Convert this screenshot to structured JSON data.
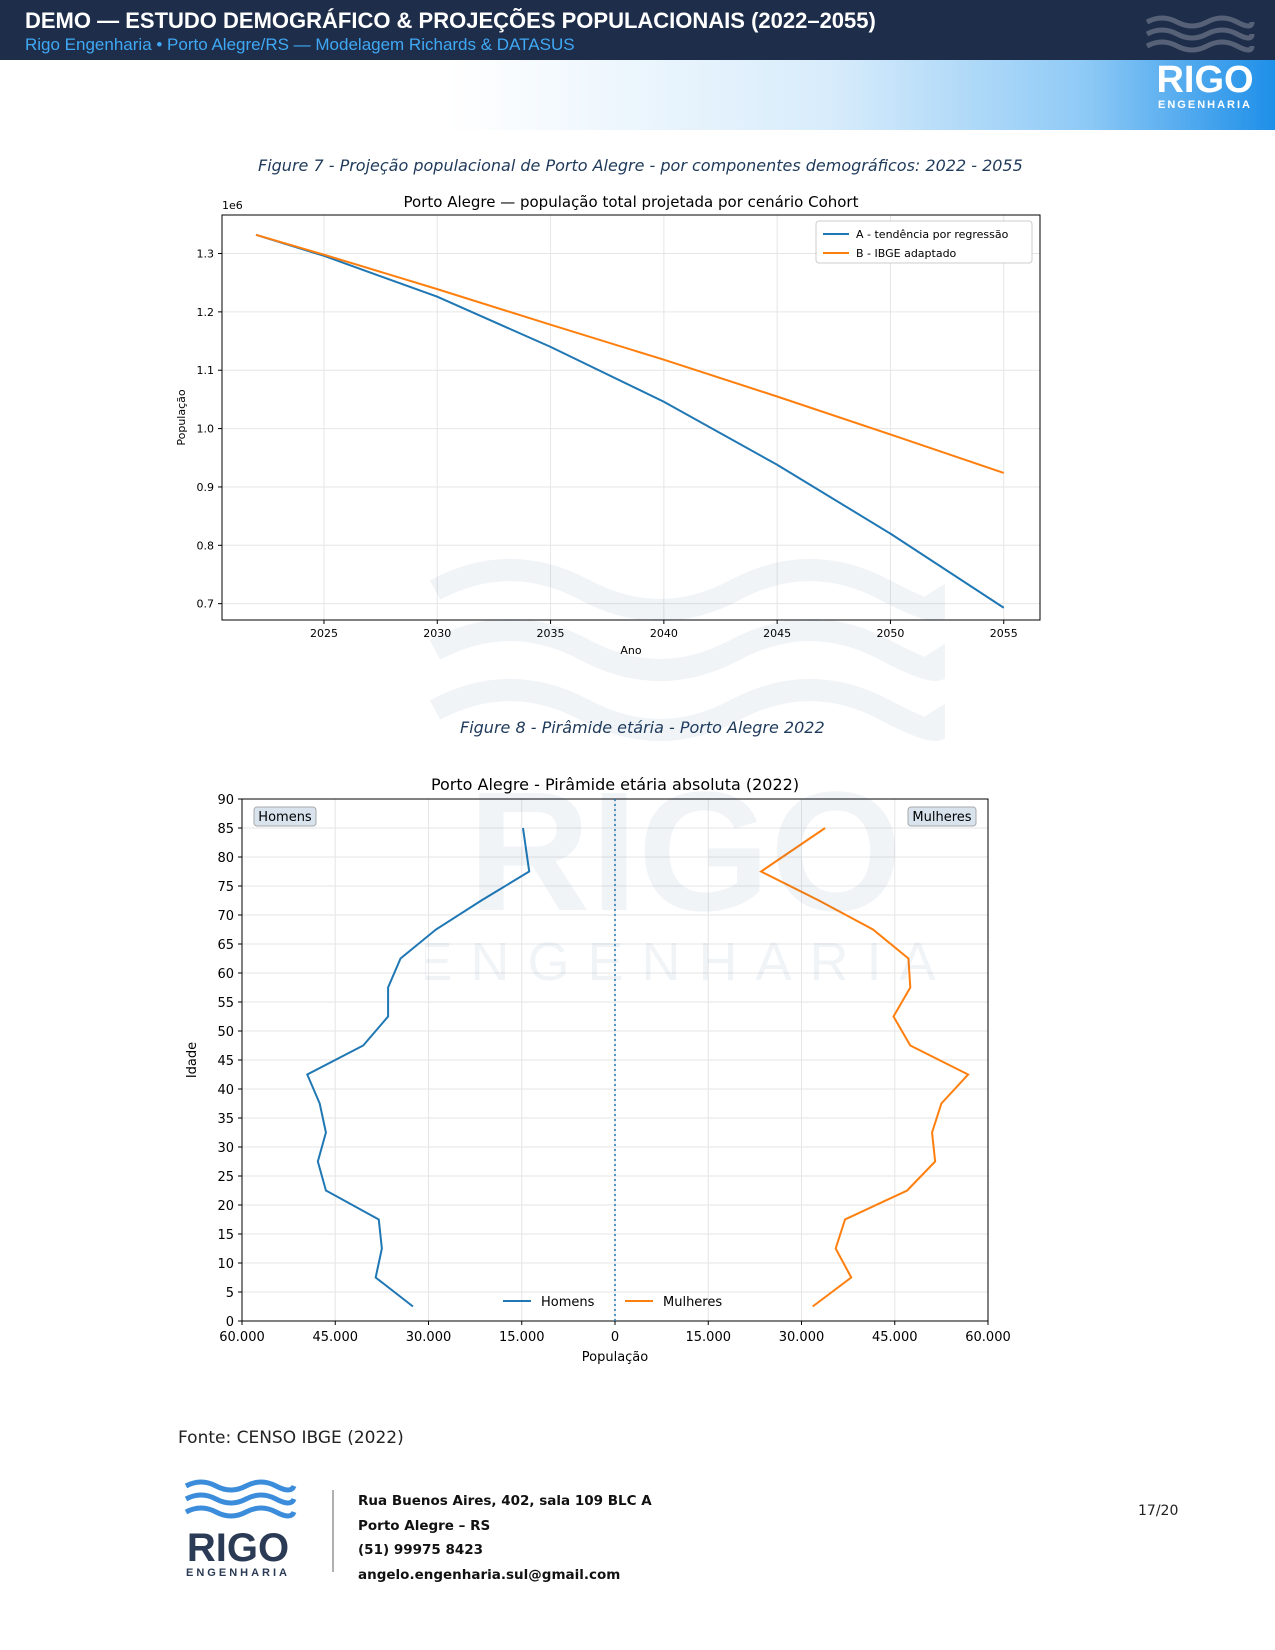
{
  "header": {
    "title": "DEMO — ESTUDO DEMOGRÁFICO & PROJEÇÕES POPULACIONAIS (2022–2055)",
    "subtitle": "Rigo Engenharia • Porto Alegre/RS — Modelagem Richards & DATASUS"
  },
  "logo": {
    "name": "RIGO",
    "tagline": "ENGENHARIA",
    "icon": "waves-icon"
  },
  "captions": {
    "figure7": "Figure 7 - Projeção populacional de Porto Alegre - por componentes demográficos: 2022 - 2055",
    "figure8": "Figure 8 - Pirâmide etária - Porto Alegre 2022"
  },
  "chart_data": [
    {
      "type": "line",
      "title": "Porto Alegre — população total projetada por cenário Cohort",
      "xlabel": "Ano",
      "ylabel": "População",
      "y_multiplier": "1e6",
      "xlim": [
        2020.5,
        2056.6
      ],
      "ylim": [
        0.672,
        1.366
      ],
      "x_ticks": [
        2025,
        2030,
        2035,
        2040,
        2045,
        2050,
        2055
      ],
      "y_ticks": [
        0.7,
        0.8,
        0.9,
        1.0,
        1.1,
        1.2,
        1.3
      ],
      "y_tick_labels": [
        "0.7",
        "0.8",
        "0.9",
        "1.0",
        "1.1",
        "1.2",
        "1.3"
      ],
      "grid": true,
      "legend_position": "top-right",
      "x": [
        2022,
        2025,
        2030,
        2035,
        2040,
        2045,
        2050,
        2055
      ],
      "series": [
        {
          "name": "A - tendência por regressão",
          "color": "#1f77b4",
          "values": [
            1.332,
            1.296,
            1.226,
            1.14,
            1.046,
            0.938,
            0.82,
            0.693
          ]
        },
        {
          "name": "B - IBGE adaptado",
          "color": "#ff7f0e",
          "values": [
            1.332,
            1.298,
            1.239,
            1.178,
            1.118,
            1.055,
            0.99,
            0.924
          ]
        }
      ]
    },
    {
      "type": "line",
      "title": "Porto Alegre - Pirâmide etária absoluta (2022)",
      "xlabel": "População",
      "ylabel": "Idade",
      "xlim": [
        -60000,
        60000
      ],
      "ylim": [
        0,
        90
      ],
      "x_ticks": [
        -60000,
        -45000,
        -30000,
        -15000,
        0,
        15000,
        30000,
        45000,
        60000
      ],
      "x_tick_labels": [
        "60.000",
        "45.000",
        "30.000",
        "15.000",
        "0",
        "15.000",
        "30.000",
        "45.000",
        "60.000"
      ],
      "y_ticks": [
        0,
        5,
        10,
        15,
        20,
        25,
        30,
        35,
        40,
        45,
        50,
        55,
        60,
        65,
        70,
        75,
        80,
        85,
        90
      ],
      "grid": true,
      "legend_position": "bottom-center",
      "side_labels": [
        "Homens",
        "Mulheres"
      ],
      "age": [
        2.5,
        7.5,
        12.5,
        17.5,
        22.5,
        27.5,
        32.5,
        37.5,
        42.5,
        47.5,
        52.5,
        57.5,
        62.5,
        67.5,
        72.5,
        77.5,
        85
      ],
      "series": [
        {
          "name": "Homens",
          "color": "#1f77b4",
          "values": [
            -32500,
            -38500,
            -37500,
            -38000,
            -46500,
            -47800,
            -46500,
            -47500,
            -49500,
            -40500,
            -36500,
            -36500,
            -34500,
            -28800,
            -21500,
            -13800,
            -14800
          ]
        },
        {
          "name": "Mulheres",
          "color": "#ff7f0e",
          "values": [
            31800,
            38000,
            35500,
            37000,
            47000,
            51500,
            51000,
            52500,
            56800,
            47500,
            44800,
            47500,
            47200,
            41500,
            32800,
            23500,
            33800
          ]
        }
      ]
    }
  ],
  "fonte": "Fonte: CENSO IBGE (2022)",
  "footer": {
    "address1": "Rua Buenos Aires, 402, sala 109 BLC A",
    "city": "Porto Alegre – RS",
    "phone": "(51) 99975 8423",
    "email": "angelo.engenharia.sul@gmail.com"
  },
  "page": "17/20"
}
